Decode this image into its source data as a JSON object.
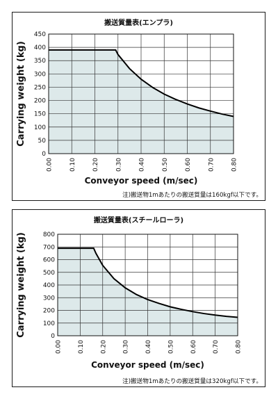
{
  "chart_data": [
    {
      "type": "area",
      "title": "搬送質量表(エンプラ)",
      "xlabel": "Conveyor speed (m/sec)",
      "ylabel": "Carrying weight (kg)",
      "note": "注)搬送物1mあたりの搬送質量は160kgf以下です。",
      "x_ticks": [
        "0.00",
        "0.10",
        "0.20",
        "0.30",
        "0.40",
        "0.50",
        "0.60",
        "0.70",
        "0.80"
      ],
      "y_ticks": [
        "0",
        "50",
        "100",
        "150",
        "200",
        "250",
        "300",
        "350",
        "400",
        "450"
      ],
      "xlim": [
        0,
        0.8
      ],
      "ylim": [
        0,
        450
      ],
      "grid": true,
      "fill_color": "#dde9ea",
      "series": [
        {
          "x": [
            0.0,
            0.29,
            0.3,
            0.35,
            0.4,
            0.45,
            0.5,
            0.55,
            0.6,
            0.65,
            0.7,
            0.75,
            0.8
          ],
          "values": [
            390,
            390,
            373,
            320,
            280,
            249,
            224,
            204,
            187,
            172,
            160,
            149,
            140
          ]
        }
      ]
    },
    {
      "type": "area",
      "title": "搬送質量表(スチールローラ)",
      "xlabel": "Conveyor speed (m/sec)",
      "ylabel": "Carrying weight (kg)",
      "note": "注)搬送物1mあたりの搬送質量は320kgf以下です。",
      "x_ticks": [
        "0.00",
        "0.10",
        "0.20",
        "0.30",
        "0.40",
        "0.50",
        "0.60",
        "0.70",
        "0.80"
      ],
      "y_ticks": [
        "0",
        "100",
        "200",
        "300",
        "400",
        "500",
        "600",
        "700",
        "800"
      ],
      "xlim": [
        0,
        0.8
      ],
      "ylim": [
        0,
        800
      ],
      "grid": true,
      "fill_color": "#dde9ea",
      "series": [
        {
          "x": [
            0.0,
            0.16,
            0.17,
            0.2,
            0.25,
            0.3,
            0.35,
            0.4,
            0.45,
            0.5,
            0.55,
            0.6,
            0.65,
            0.7,
            0.75,
            0.8
          ],
          "values": [
            690,
            690,
            650,
            555,
            450,
            378,
            325,
            285,
            255,
            228,
            208,
            190,
            175,
            163,
            153,
            145
          ]
        }
      ]
    }
  ]
}
